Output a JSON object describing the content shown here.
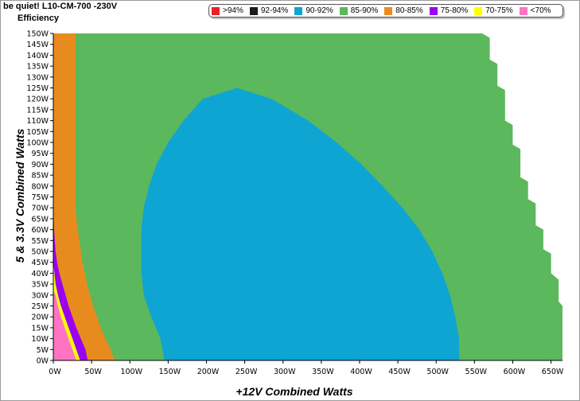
{
  "header": {
    "title": "be quiet! L10-CM-700 -230V",
    "subtitle": "Efficiency"
  },
  "legend": [
    {
      "label": ">94%",
      "color": "#e8212a"
    },
    {
      "label": "92-94%",
      "color": "#1c1c1c"
    },
    {
      "label": "90-92%",
      "color": "#0ea5d3"
    },
    {
      "label": "85-90%",
      "color": "#5cb85c"
    },
    {
      "label": "80-85%",
      "color": "#e88b1e"
    },
    {
      "label": "75-80%",
      "color": "#9b00f0"
    },
    {
      "label": "70-75%",
      "color": "#ffff00"
    },
    {
      "label": "<70%",
      "color": "#ff73c4"
    }
  ],
  "chart_data": {
    "type": "heatmap",
    "title": "Efficiency",
    "xlabel": "+12V Combined Watts",
    "ylabel": "5 & 3.3V Combined Watts",
    "xlim": [
      0,
      665
    ],
    "ylim": [
      0,
      150
    ],
    "x_ticks": [
      "0W",
      "50W",
      "100W",
      "150W",
      "200W",
      "250W",
      "300W",
      "350W",
      "400W",
      "450W",
      "500W",
      "550W",
      "600W",
      "650W"
    ],
    "y_ticks": [
      "0W",
      "5W",
      "10W",
      "15W",
      "20W",
      "25W",
      "30W",
      "35W",
      "40W",
      "45W",
      "50W",
      "55W",
      "60W",
      "65W",
      "70W",
      "75W",
      "80W",
      "85W",
      "90W",
      "95W",
      "100W",
      "105W",
      "110W",
      "115W",
      "120W",
      "125W",
      "130W",
      "135W",
      "140W",
      "145W",
      "150W"
    ],
    "max_x_by_y": [
      {
        "y": 0,
        "x": 665
      },
      {
        "y": 25,
        "x": 665
      },
      {
        "y": 27,
        "x": 660
      },
      {
        "y": 37,
        "x": 660
      },
      {
        "y": 40,
        "x": 650
      },
      {
        "y": 49,
        "x": 650
      },
      {
        "y": 51,
        "x": 640
      },
      {
        "y": 60,
        "x": 640
      },
      {
        "y": 62,
        "x": 630
      },
      {
        "y": 72,
        "x": 630
      },
      {
        "y": 74,
        "x": 620
      },
      {
        "y": 82,
        "x": 620
      },
      {
        "y": 84,
        "x": 610
      },
      {
        "y": 97,
        "x": 610
      },
      {
        "y": 99,
        "x": 600
      },
      {
        "y": 108,
        "x": 600
      },
      {
        "y": 110,
        "x": 590
      },
      {
        "y": 124,
        "x": 590
      },
      {
        "y": 126,
        "x": 580
      },
      {
        "y": 136,
        "x": 580
      },
      {
        "y": 138,
        "x": 570
      },
      {
        "y": 148,
        "x": 570
      },
      {
        "y": 150,
        "x": 560
      }
    ],
    "regions": [
      {
        "class": "85-90%",
        "x_min": 0,
        "x_max_ref": "max_x_by_y"
      },
      {
        "class": "80-85%",
        "boundary": [
          [
            80,
            0
          ],
          [
            75,
            5
          ],
          [
            68,
            10
          ],
          [
            62,
            15
          ],
          [
            57,
            20
          ],
          [
            52,
            25
          ],
          [
            48,
            30
          ],
          [
            44,
            35
          ],
          [
            41,
            40
          ],
          [
            38,
            45
          ],
          [
            36,
            50
          ],
          [
            34,
            55
          ],
          [
            32,
            60
          ],
          [
            30,
            65
          ],
          [
            29,
            70
          ],
          [
            29,
            150
          ]
        ]
      },
      {
        "class": "90-92%",
        "boundary_right": [
          [
            530,
            0
          ],
          [
            530,
            10
          ],
          [
            525,
            20
          ],
          [
            518,
            30
          ],
          [
            508,
            40
          ],
          [
            495,
            50
          ],
          [
            478,
            60
          ],
          [
            456,
            70
          ],
          [
            430,
            80
          ],
          [
            402,
            90
          ],
          [
            370,
            100
          ],
          [
            333,
            110
          ],
          [
            285,
            120
          ],
          [
            240,
            125
          ]
        ],
        "boundary_left": [
          [
            145,
            0
          ],
          [
            140,
            10
          ],
          [
            128,
            20
          ],
          [
            118,
            30
          ],
          [
            115,
            40
          ],
          [
            115,
            50
          ],
          [
            115,
            60
          ],
          [
            118,
            70
          ],
          [
            125,
            80
          ],
          [
            135,
            90
          ],
          [
            150,
            100
          ],
          [
            170,
            110
          ],
          [
            195,
            120
          ],
          [
            240,
            125
          ]
        ]
      },
      {
        "class": "75-80%",
        "boundary": [
          [
            45,
            0
          ],
          [
            42,
            5
          ],
          [
            36,
            10
          ],
          [
            30,
            15
          ],
          [
            25,
            20
          ],
          [
            20,
            25
          ],
          [
            16,
            30
          ],
          [
            12,
            35
          ],
          [
            8,
            40
          ],
          [
            5,
            45
          ],
          [
            3,
            50
          ],
          [
            2,
            55
          ],
          [
            1,
            60
          ],
          [
            0,
            70
          ]
        ]
      },
      {
        "class": "70-75%",
        "boundary": [
          [
            35,
            0
          ],
          [
            30,
            5
          ],
          [
            25,
            10
          ],
          [
            20,
            15
          ],
          [
            15,
            20
          ],
          [
            10,
            25
          ],
          [
            6,
            30
          ],
          [
            3,
            35
          ],
          [
            0,
            45
          ]
        ]
      },
      {
        "class": "<70%",
        "boundary": [
          [
            30,
            0
          ],
          [
            25,
            5
          ],
          [
            20,
            10
          ],
          [
            15,
            15
          ],
          [
            10,
            20
          ],
          [
            6,
            25
          ],
          [
            3,
            30
          ],
          [
            0,
            32
          ]
        ]
      }
    ]
  }
}
